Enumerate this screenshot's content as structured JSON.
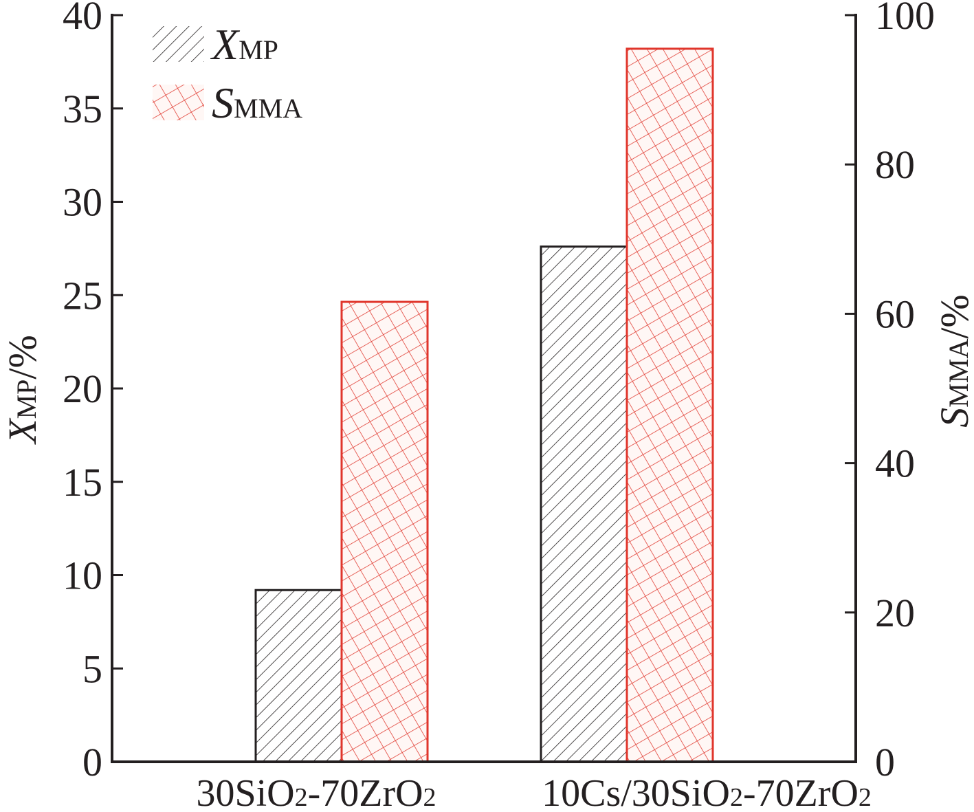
{
  "chart_data": {
    "type": "bar",
    "categories": [
      {
        "main": "30SiO",
        "sub1": "2",
        "mid": "-70ZrO",
        "sub2": "2"
      },
      {
        "main": "10Cs/30SiO",
        "sub1": "2",
        "mid": "-70ZrO",
        "sub2": "2"
      }
    ],
    "series": [
      {
        "name": "X",
        "name_sub": "MP",
        "axis": "left",
        "values": [
          9.2,
          27.6
        ],
        "color": "#231f20",
        "pattern": "hatch"
      },
      {
        "name": "S",
        "name_sub": "MMA",
        "axis": "right",
        "values": [
          61.6,
          95.5
        ],
        "color": "#e0362c",
        "pattern": "crosshatch"
      }
    ],
    "y_left": {
      "label_main": "X",
      "label_sub": "MP",
      "label_unit": "/%",
      "ylim": [
        0,
        40
      ],
      "ticks": [
        "0",
        "5",
        "10",
        "15",
        "20",
        "25",
        "30",
        "35",
        "40"
      ]
    },
    "y_right": {
      "label_main": "S",
      "label_sub": "MMA",
      "label_unit": "/%",
      "ylim": [
        0,
        100
      ],
      "ticks": [
        "0",
        "20",
        "40",
        "60",
        "80",
        "100"
      ]
    },
    "legend_position": "top-left",
    "grid": false
  }
}
